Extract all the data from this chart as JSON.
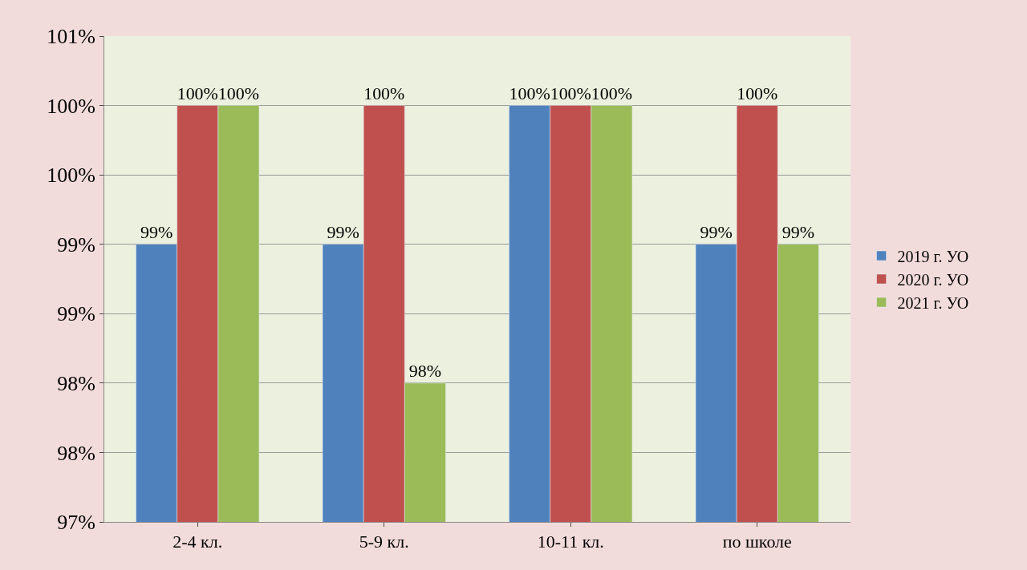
{
  "chart_data": {
    "type": "bar",
    "categories": [
      "2-4 кл.",
      "5-9 кл.",
      "10-11 кл.",
      "по школе"
    ],
    "series": [
      {
        "name": "2019 г. УО",
        "color": "#4f81bd",
        "values": [
          99,
          99,
          100,
          99
        ],
        "value_labels": [
          "99%",
          "99%",
          "100%",
          "99%"
        ]
      },
      {
        "name": "2020 г. УО",
        "color": "#c0504d",
        "values": [
          100,
          100,
          100,
          100
        ],
        "value_labels": [
          "100%",
          "100%",
          "100%",
          "100%"
        ]
      },
      {
        "name": "2021 г. УО",
        "color": "#9bbb59",
        "values": [
          100,
          98,
          100,
          99
        ],
        "value_labels": [
          "100%",
          "98%",
          "100%",
          "99%"
        ]
      }
    ],
    "ylim": [
      97,
      100.5
    ],
    "yticks": [
      {
        "value": 97,
        "label": "97%"
      },
      {
        "value": 97.5,
        "label": "98%"
      },
      {
        "value": 98,
        "label": "98%"
      },
      {
        "value": 98.5,
        "label": "99%"
      },
      {
        "value": 99,
        "label": "99%"
      },
      {
        "value": 99.5,
        "label": "100%"
      },
      {
        "value": 100,
        "label": "100%"
      },
      {
        "value": 100.5,
        "label": "101%"
      }
    ],
    "grid": "y",
    "legend": "right"
  }
}
